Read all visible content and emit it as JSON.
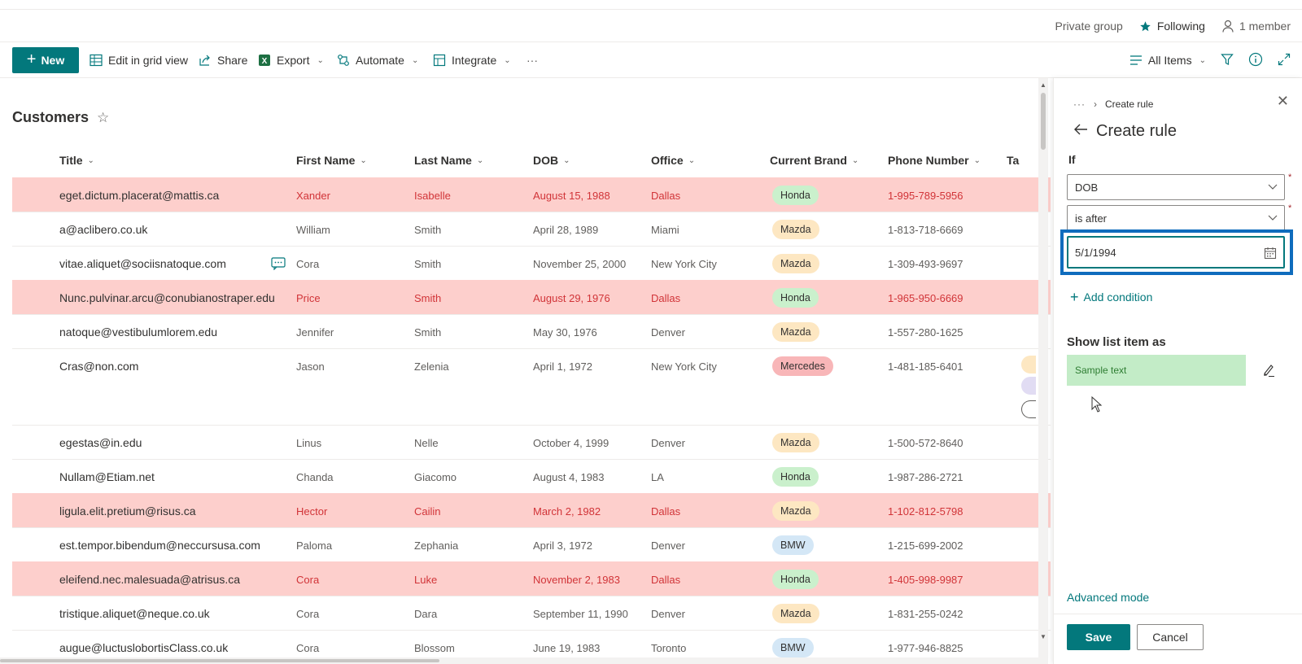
{
  "group_bar": {
    "private_group": "Private group",
    "following": "Following",
    "members": "1 member"
  },
  "command_bar": {
    "new_label": "New",
    "edit_grid": "Edit in grid view",
    "share": "Share",
    "export": "Export",
    "automate": "Automate",
    "integrate": "Integrate",
    "more": "···",
    "view_name": "All Items"
  },
  "list": {
    "title": "Customers",
    "columns": {
      "title": "Title",
      "first_name": "First Name",
      "last_name": "Last Name",
      "dob": "DOB",
      "office": "Office",
      "brand": "Current Brand",
      "phone": "Phone Number",
      "tags": "Ta"
    },
    "rows": [
      {
        "title": "eget.dictum.placerat@mattis.ca",
        "first": "Xander",
        "last": "Isabelle",
        "dob": "August 15, 1988",
        "office": "Dallas",
        "brand": "Honda",
        "phone": "1-995-789-5956",
        "highlight": true
      },
      {
        "title": "a@aclibero.co.uk",
        "first": "William",
        "last": "Smith",
        "dob": "April 28, 1989",
        "office": "Miami",
        "brand": "Mazda",
        "phone": "1-813-718-6669",
        "highlight": false
      },
      {
        "title": "vitae.aliquet@sociisnatoque.com",
        "first": "Cora",
        "last": "Smith",
        "dob": "November 25, 2000",
        "office": "New York City",
        "brand": "Mazda",
        "phone": "1-309-493-9697",
        "highlight": false
      },
      {
        "title": "Nunc.pulvinar.arcu@conubianostraper.edu",
        "first": "Price",
        "last": "Smith",
        "dob": "August 29, 1976",
        "office": "Dallas",
        "brand": "Honda",
        "phone": "1-965-950-6669",
        "highlight": true
      },
      {
        "title": "natoque@vestibulumlorem.edu",
        "first": "Jennifer",
        "last": "Smith",
        "dob": "May 30, 1976",
        "office": "Denver",
        "brand": "Mazda",
        "phone": "1-557-280-1625",
        "highlight": false
      },
      {
        "title": "Cras@non.com",
        "first": "Jason",
        "last": "Zelenia",
        "dob": "April 1, 1972",
        "office": "New York City",
        "brand": "Mercedes",
        "phone": "1-481-185-6401",
        "highlight": false
      },
      {
        "title": "egestas@in.edu",
        "first": "Linus",
        "last": "Nelle",
        "dob": "October 4, 1999",
        "office": "Denver",
        "brand": "Mazda",
        "phone": "1-500-572-8640",
        "highlight": false
      },
      {
        "title": "Nullam@Etiam.net",
        "first": "Chanda",
        "last": "Giacomo",
        "dob": "August 4, 1983",
        "office": "LA",
        "brand": "Honda",
        "phone": "1-987-286-2721",
        "highlight": false
      },
      {
        "title": "ligula.elit.pretium@risus.ca",
        "first": "Hector",
        "last": "Cailin",
        "dob": "March 2, 1982",
        "office": "Dallas",
        "brand": "Mazda",
        "phone": "1-102-812-5798",
        "highlight": true
      },
      {
        "title": "est.tempor.bibendum@neccursusa.com",
        "first": "Paloma",
        "last": "Zephania",
        "dob": "April 3, 1972",
        "office": "Denver",
        "brand": "BMW",
        "phone": "1-215-699-2002",
        "highlight": false
      },
      {
        "title": "eleifend.nec.malesuada@atrisus.ca",
        "first": "Cora",
        "last": "Luke",
        "dob": "November 2, 1983",
        "office": "Dallas",
        "brand": "Honda",
        "phone": "1-405-998-9987",
        "highlight": true
      },
      {
        "title": "tristique.aliquet@neque.co.uk",
        "first": "Cora",
        "last": "Dara",
        "dob": "September 11, 1990",
        "office": "Denver",
        "brand": "Mazda",
        "phone": "1-831-255-0242",
        "highlight": false
      },
      {
        "title": "augue@luctuslobortisClass.co.uk",
        "first": "Cora",
        "last": "Blossom",
        "dob": "June 19, 1983",
        "office": "Toronto",
        "brand": "BMW",
        "phone": "1-977-946-8825",
        "highlight": false
      }
    ]
  },
  "brand_colors": {
    "Honda": "#caf0cc",
    "Mazda": "#fde7c2",
    "Mercedes": "#f8b6b8",
    "BMW": "#d4e7f6"
  },
  "panel": {
    "breadcrumb_more": "···",
    "breadcrumb_current": "Create rule",
    "title": "Create rule",
    "if_label": "If",
    "field_value": "DOB",
    "operator_value": "is after",
    "date_value": "5/1/1994",
    "add_condition": "Add condition",
    "show_as_label": "Show list item as",
    "sample_text": "Sample text",
    "advanced_mode": "Advanced mode",
    "save": "Save",
    "cancel": "Cancel"
  },
  "colors": {
    "accent": "#03787c",
    "highlight_row": "#fdcfcc",
    "focus": "#0f6cbd"
  }
}
